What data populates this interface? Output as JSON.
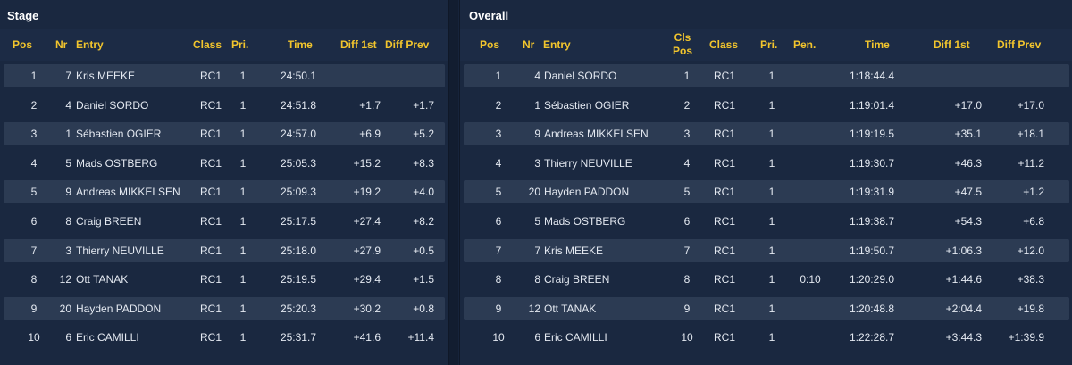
{
  "stage": {
    "title": "Stage",
    "headers": {
      "pos": "Pos",
      "nr": "Nr",
      "entry": "Entry",
      "class": "Class",
      "pri": "Pri.",
      "time": "Time",
      "diff1": "Diff 1st",
      "diffprev": "Diff Prev"
    },
    "rows": [
      {
        "pos": "1",
        "nr": "7",
        "entry": "Kris MEEKE",
        "class": "RC1",
        "pri": "1",
        "time": "24:50.1",
        "diff1": "",
        "diffprev": ""
      },
      {
        "pos": "2",
        "nr": "4",
        "entry": "Daniel SORDO",
        "class": "RC1",
        "pri": "1",
        "time": "24:51.8",
        "diff1": "+1.7",
        "diffprev": "+1.7"
      },
      {
        "pos": "3",
        "nr": "1",
        "entry": "Sébastien OGIER",
        "class": "RC1",
        "pri": "1",
        "time": "24:57.0",
        "diff1": "+6.9",
        "diffprev": "+5.2"
      },
      {
        "pos": "4",
        "nr": "5",
        "entry": "Mads OSTBERG",
        "class": "RC1",
        "pri": "1",
        "time": "25:05.3",
        "diff1": "+15.2",
        "diffprev": "+8.3"
      },
      {
        "pos": "5",
        "nr": "9",
        "entry": "Andreas MIKKELSEN",
        "class": "RC1",
        "pri": "1",
        "time": "25:09.3",
        "diff1": "+19.2",
        "diffprev": "+4.0"
      },
      {
        "pos": "6",
        "nr": "8",
        "entry": "Craig BREEN",
        "class": "RC1",
        "pri": "1",
        "time": "25:17.5",
        "diff1": "+27.4",
        "diffprev": "+8.2"
      },
      {
        "pos": "7",
        "nr": "3",
        "entry": "Thierry NEUVILLE",
        "class": "RC1",
        "pri": "1",
        "time": "25:18.0",
        "diff1": "+27.9",
        "diffprev": "+0.5"
      },
      {
        "pos": "8",
        "nr": "12",
        "entry": "Ott TANAK",
        "class": "RC1",
        "pri": "1",
        "time": "25:19.5",
        "diff1": "+29.4",
        "diffprev": "+1.5"
      },
      {
        "pos": "9",
        "nr": "20",
        "entry": "Hayden PADDON",
        "class": "RC1",
        "pri": "1",
        "time": "25:20.3",
        "diff1": "+30.2",
        "diffprev": "+0.8"
      },
      {
        "pos": "10",
        "nr": "6",
        "entry": "Eric CAMILLI",
        "class": "RC1",
        "pri": "1",
        "time": "25:31.7",
        "diff1": "+41.6",
        "diffprev": "+11.4"
      }
    ]
  },
  "overall": {
    "title": "Overall",
    "headers": {
      "pos": "Pos",
      "nr": "Nr",
      "entry": "Entry",
      "clspos_line1": "Cls",
      "clspos_line2": "Pos",
      "class": "Class",
      "pri": "Pri.",
      "pen": "Pen.",
      "time": "Time",
      "diff1": "Diff 1st",
      "diffprev": "Diff Prev"
    },
    "rows": [
      {
        "pos": "1",
        "nr": "4",
        "entry": "Daniel SORDO",
        "clspos": "1",
        "class": "RC1",
        "pri": "1",
        "pen": "",
        "time": "1:18:44.4",
        "diff1": "",
        "diffprev": ""
      },
      {
        "pos": "2",
        "nr": "1",
        "entry": "Sébastien OGIER",
        "clspos": "2",
        "class": "RC1",
        "pri": "1",
        "pen": "",
        "time": "1:19:01.4",
        "diff1": "+17.0",
        "diffprev": "+17.0"
      },
      {
        "pos": "3",
        "nr": "9",
        "entry": "Andreas MIKKELSEN",
        "clspos": "3",
        "class": "RC1",
        "pri": "1",
        "pen": "",
        "time": "1:19:19.5",
        "diff1": "+35.1",
        "diffprev": "+18.1"
      },
      {
        "pos": "4",
        "nr": "3",
        "entry": "Thierry NEUVILLE",
        "clspos": "4",
        "class": "RC1",
        "pri": "1",
        "pen": "",
        "time": "1:19:30.7",
        "diff1": "+46.3",
        "diffprev": "+11.2"
      },
      {
        "pos": "5",
        "nr": "20",
        "entry": "Hayden PADDON",
        "clspos": "5",
        "class": "RC1",
        "pri": "1",
        "pen": "",
        "time": "1:19:31.9",
        "diff1": "+47.5",
        "diffprev": "+1.2"
      },
      {
        "pos": "6",
        "nr": "5",
        "entry": "Mads OSTBERG",
        "clspos": "6",
        "class": "RC1",
        "pri": "1",
        "pen": "",
        "time": "1:19:38.7",
        "diff1": "+54.3",
        "diffprev": "+6.8"
      },
      {
        "pos": "7",
        "nr": "7",
        "entry": "Kris MEEKE",
        "clspos": "7",
        "class": "RC1",
        "pri": "1",
        "pen": "",
        "time": "1:19:50.7",
        "diff1": "+1:06.3",
        "diffprev": "+12.0"
      },
      {
        "pos": "8",
        "nr": "8",
        "entry": "Craig BREEN",
        "clspos": "8",
        "class": "RC1",
        "pri": "1",
        "pen": "0:10",
        "time": "1:20:29.0",
        "diff1": "+1:44.6",
        "diffprev": "+38.3"
      },
      {
        "pos": "9",
        "nr": "12",
        "entry": "Ott TANAK",
        "clspos": "9",
        "class": "RC1",
        "pri": "1",
        "pen": "",
        "time": "1:20:48.8",
        "diff1": "+2:04.4",
        "diffprev": "+19.8"
      },
      {
        "pos": "10",
        "nr": "6",
        "entry": "Eric CAMILLI",
        "clspos": "10",
        "class": "RC1",
        "pri": "1",
        "pen": "",
        "time": "1:22:28.7",
        "diff1": "+3:44.3",
        "diffprev": "+1:39.9"
      }
    ]
  },
  "colors": {
    "header_text": "#f2c52d",
    "panel_bg": "#1a2840",
    "row_alt_bg": "#2c3b53",
    "text": "#e4e9f1"
  }
}
